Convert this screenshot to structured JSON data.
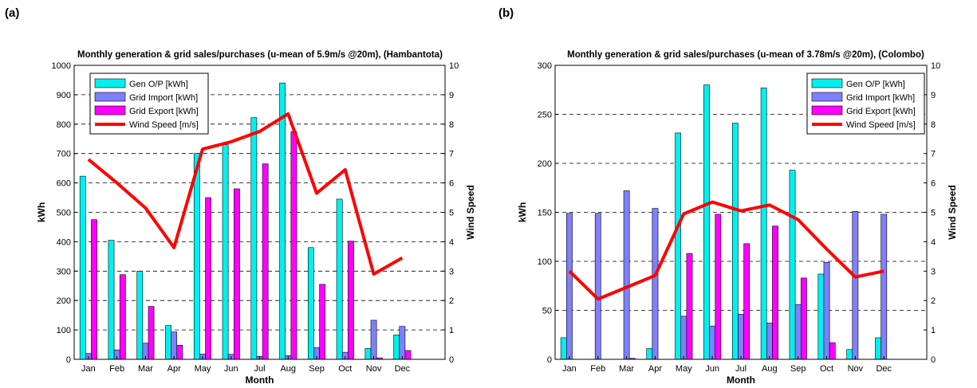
{
  "panels": [
    {
      "label": "(a)"
    },
    {
      "label": "(b)"
    }
  ],
  "chart_data": [
    {
      "type": "bar",
      "title": "Monthly generation & grid sales/purchases (u-mean of 5.9m/s @20m), (Hambantota)",
      "xlabel": "Month",
      "ylabel": "kWh",
      "y2label": "Wind Speed",
      "ylim": [
        0,
        1000
      ],
      "yticks": [
        0,
        100,
        200,
        300,
        400,
        500,
        600,
        700,
        800,
        900,
        1000
      ],
      "y2lim": [
        0,
        10
      ],
      "y2ticks": [
        0,
        1,
        2,
        3,
        4,
        5,
        6,
        7,
        8,
        9,
        10
      ],
      "grid": "horizontal dashed",
      "legend_position": "top-left",
      "categories": [
        "Jan",
        "Feb",
        "Mar",
        "Apr",
        "May",
        "Jun",
        "Jul",
        "Aug",
        "Sep",
        "Oct",
        "Nov",
        "Dec"
      ],
      "series": [
        {
          "name": "Gen O/P [kWh]",
          "type": "bar",
          "color": "#00f0f0",
          "values": [
            623,
            405,
            300,
            115,
            700,
            730,
            822,
            940,
            380,
            545,
            37,
            83
          ]
        },
        {
          "name": "Grid Import [kWh]",
          "type": "bar",
          "color": "#7f7fff",
          "values": [
            20,
            32,
            55,
            93,
            18,
            17,
            10,
            13,
            40,
            24,
            133,
            112
          ]
        },
        {
          "name": "Grid Export [kWh]",
          "type": "bar",
          "color": "#ff00ff",
          "values": [
            475,
            288,
            180,
            48,
            550,
            580,
            665,
            775,
            255,
            402,
            5,
            30
          ]
        },
        {
          "name": "Wind Speed [m/s]",
          "type": "line",
          "axis": "right",
          "color": "#ff0000",
          "values": [
            6.8,
            6.0,
            5.15,
            3.8,
            7.15,
            7.4,
            7.75,
            8.35,
            5.65,
            6.45,
            2.9,
            3.45
          ]
        }
      ]
    },
    {
      "type": "bar",
      "title": "Monthly generation & grid sales/purchases (u-mean of 3.78m/s @20m), (Colombo)",
      "xlabel": "Month",
      "ylabel": "kWh",
      "y2label": "Wind Speed",
      "ylim": [
        0,
        300
      ],
      "yticks": [
        0,
        50,
        100,
        150,
        200,
        250,
        300
      ],
      "y2lim": [
        0,
        10
      ],
      "y2ticks": [
        0,
        1,
        2,
        3,
        4,
        5,
        6,
        7,
        8,
        9,
        10
      ],
      "grid": "horizontal dashed",
      "legend_position": "top-right",
      "categories": [
        "Jan",
        "Feb",
        "Mar",
        "Apr",
        "May",
        "Jun",
        "Jul",
        "Aug",
        "Sep",
        "Oct",
        "Nov",
        "Dec"
      ],
      "series": [
        {
          "name": "Gen O/P [kWh]",
          "type": "bar",
          "color": "#00f0f0",
          "values": [
            22,
            0,
            0,
            11,
            231,
            280,
            241,
            277,
            193,
            87,
            10,
            22
          ]
        },
        {
          "name": "Grid Import [kWh]",
          "type": "bar",
          "color": "#7f7fff",
          "values": [
            149,
            149,
            172,
            154,
            44,
            34,
            46,
            37,
            56,
            99,
            151,
            148
          ]
        },
        {
          "name": "Grid Export [kWh]",
          "type": "bar",
          "color": "#ff00ff",
          "values": [
            0,
            0,
            1,
            0,
            108,
            148,
            118,
            136,
            83,
            17,
            0,
            0
          ]
        },
        {
          "name": "Wind Speed [m/s]",
          "type": "line",
          "axis": "right",
          "color": "#ff0000",
          "values": [
            3.0,
            2.05,
            2.45,
            2.85,
            4.95,
            5.35,
            5.05,
            5.25,
            4.75,
            3.75,
            2.8,
            3.0
          ]
        }
      ]
    }
  ]
}
